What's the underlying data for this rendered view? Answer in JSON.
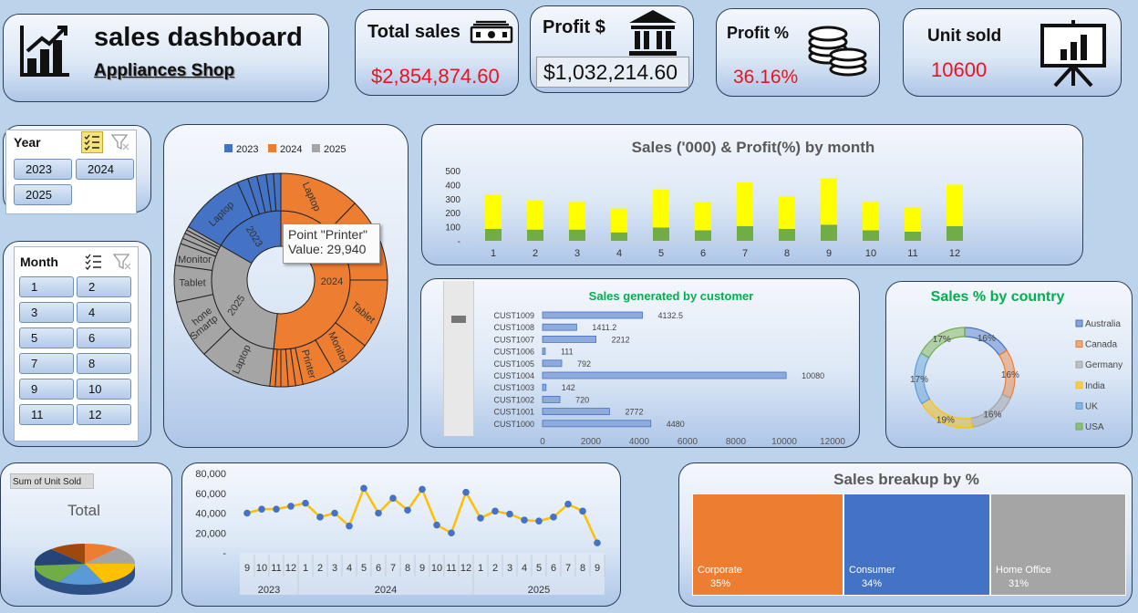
{
  "header": {
    "title": "sales dashboard",
    "subtitle": "Appliances Shop"
  },
  "kpis": {
    "total_sales": {
      "label": "Total sales",
      "value": "$2,854,874.60"
    },
    "profit": {
      "label": "Profit $",
      "value": "$1,032,214.60"
    },
    "profit_pct": {
      "label": "Profit %",
      "value": "36.16%"
    },
    "unit_sold": {
      "label": "Unit sold",
      "value": "10600"
    }
  },
  "slicers": {
    "year": {
      "title": "Year",
      "items": [
        "2023",
        "2024",
        "2025"
      ]
    },
    "month": {
      "title": "Month",
      "items": [
        "1",
        "2",
        "3",
        "4",
        "5",
        "6",
        "7",
        "8",
        "9",
        "10",
        "11",
        "12"
      ]
    }
  },
  "colors": {
    "blue": "#4472c4",
    "orange": "#ed7d31",
    "gray": "#a5a5a5",
    "yellow": "#ffff00",
    "green": "#70ad47",
    "red": "#e8141f",
    "gold": "#ffc000"
  },
  "sunburst": {
    "legend": [
      "2023",
      "2024",
      "2025"
    ],
    "years": [
      {
        "name": "2023",
        "color": "#4472c4",
        "labels": [
          "Laptop"
        ]
      },
      {
        "name": "2024",
        "color": "#ed7d31",
        "labels": [
          "Laptop",
          "Smartphone",
          "Tablet",
          "Monitor",
          "Printer"
        ]
      },
      {
        "name": "2025",
        "color": "#a5a5a5",
        "labels": [
          "Laptop",
          "Smartphone",
          "Tablet",
          "Monitor"
        ]
      }
    ],
    "tooltip": {
      "line1": "Point \"Printer\"",
      "line2": "Value:  29,940"
    }
  },
  "chart_data": [
    {
      "type": "bar",
      "title": "Sales ('000) & Profit(%) by month",
      "categories": [
        "1",
        "2",
        "3",
        "4",
        "5",
        "6",
        "7",
        "8",
        "9",
        "10",
        "11",
        "12"
      ],
      "series": [
        {
          "values": [
            85,
            80,
            80,
            60,
            95,
            75,
            105,
            85,
            115,
            75,
            65,
            105
          ]
        },
        {
          "values": [
            245,
            210,
            200,
            170,
            270,
            200,
            310,
            230,
            330,
            205,
            175,
            295
          ]
        }
      ],
      "yticks": [
        "500",
        "400",
        "300",
        "200",
        "100",
        "-"
      ],
      "ylim": [
        0,
        500
      ]
    },
    {
      "type": "bar",
      "title": "Sales generated by customer",
      "categories": [
        "CUST1009",
        "CUST1008",
        "CUST1007",
        "CUST1006",
        "CUST1005",
        "CUST1004",
        "CUST1003",
        "CUST1002",
        "CUST1001",
        "CUST1000"
      ],
      "values": [
        4132.5,
        1411.2,
        2212,
        111,
        792,
        10080,
        142,
        720,
        2772,
        4480
      ],
      "value_labels": [
        "4132.5",
        "1411.2",
        "2212",
        "111",
        "792",
        "10080",
        "142",
        "720",
        "2772",
        "4480"
      ],
      "xticks": [
        "0",
        "2000",
        "4000",
        "6000",
        "8000",
        "10000",
        "12000"
      ],
      "xlim": [
        0,
        12000
      ]
    },
    {
      "type": "pie",
      "title": "Sales % by country",
      "categories": [
        "Australia",
        "Canada",
        "Germany",
        "India",
        "UK",
        "USA"
      ],
      "values": [
        16,
        16,
        16,
        19,
        17,
        17
      ],
      "value_labels": [
        "16%",
        "16%",
        "16%",
        "19%",
        "17%",
        "17%"
      ],
      "colors": [
        "#4472c4",
        "#ed7d31",
        "#a5a5a5",
        "#ffc000",
        "#5b9bd5",
        "#70ad47"
      ]
    },
    {
      "type": "pie",
      "title": "Total",
      "field_button": "Sum of Unit Sold"
    },
    {
      "type": "line",
      "yticks": [
        "80,000",
        "60,000",
        "40,000",
        "20,000",
        "-"
      ],
      "ylim": [
        0,
        80000
      ],
      "x": [
        "9",
        "10",
        "11",
        "12",
        "1",
        "2",
        "3",
        "4",
        "5",
        "6",
        "7",
        "8",
        "9",
        "10",
        "11",
        "12",
        "1",
        "2",
        "3",
        "4",
        "5",
        "6",
        "7",
        "8",
        "9"
      ],
      "year_groups": [
        "2023",
        "2024",
        "2025"
      ],
      "values": [
        40000,
        44000,
        44000,
        47000,
        50000,
        36000,
        40000,
        27000,
        65000,
        40000,
        55000,
        43000,
        64000,
        28000,
        20000,
        61000,
        35000,
        42000,
        39000,
        33000,
        32000,
        36000,
        49000,
        42000,
        10000
      ]
    },
    {
      "type": "heatmap",
      "title": "Sales breakup by %",
      "categories": [
        "Corporate",
        "Consumer",
        "Home Office"
      ],
      "values": [
        35,
        34,
        31
      ],
      "value_labels": [
        "35%",
        "34%",
        "31%"
      ],
      "colors": [
        "#ed7d31",
        "#4472c4",
        "#a5a5a5"
      ]
    }
  ]
}
